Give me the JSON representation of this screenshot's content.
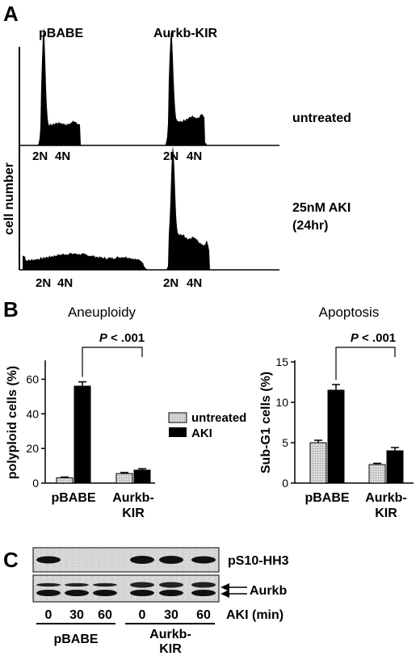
{
  "panel_a": {
    "letter": "A",
    "columns": [
      "pBABE",
      "Aurkb-KIR"
    ],
    "y_axis_label": "cell number",
    "row_labels": [
      [
        "untreated"
      ],
      [
        "25nM AKI",
        "(24hr)"
      ]
    ],
    "peak_labels": [
      "2N",
      "4N"
    ]
  },
  "panel_b": {
    "letter": "B",
    "legend": [
      "untreated",
      "AKI"
    ]
  },
  "panel_c": {
    "letter": "C",
    "bands": [
      "pS10-HH3",
      "Aurkb"
    ],
    "time_unit_label": "AKI (min)",
    "lanes": [
      "0",
      "30",
      "60",
      "0",
      "30",
      "60"
    ],
    "groups": [
      [
        "pBABE"
      ],
      [
        "Aurkb-",
        "KIR"
      ]
    ]
  },
  "colors": {
    "untreated_fill": "#cfcfcf",
    "aki_fill": "#000000",
    "histogram": "#000000"
  },
  "chart_data": [
    {
      "type": "bar",
      "title": "Aneuploidy",
      "ylabel": "polyploid cells (%)",
      "categories": [
        [
          "pBABE"
        ],
        [
          "Aurkb-",
          "KIR"
        ]
      ],
      "series": [
        {
          "name": "untreated",
          "values": [
            3,
            5.5
          ],
          "errors": [
            0.5,
            0.6
          ]
        },
        {
          "name": "AKI",
          "values": [
            56,
            7.5
          ],
          "errors": [
            2.5,
            0.8
          ]
        }
      ],
      "ylim": [
        0,
        70
      ],
      "yticks": [
        0,
        20,
        40,
        60
      ],
      "annotation": {
        "label_italic": "P",
        "label_rest": " < .001"
      }
    },
    {
      "type": "bar",
      "title": "Apoptosis",
      "ylabel": "Sub-G1 cells (%)",
      "categories": [
        [
          "pBABE"
        ],
        [
          "Aurkb-",
          "KIR"
        ]
      ],
      "series": [
        {
          "name": "untreated",
          "values": [
            5,
            2.3
          ],
          "errors": [
            0.3,
            0.15
          ]
        },
        {
          "name": "AKI",
          "values": [
            11.5,
            4
          ],
          "errors": [
            0.7,
            0.4
          ]
        }
      ],
      "ylim": [
        0,
        15
      ],
      "yticks": [
        0,
        5,
        10,
        15
      ],
      "annotation": {
        "label_italic": "P",
        "label_rest": " < .001"
      }
    }
  ]
}
